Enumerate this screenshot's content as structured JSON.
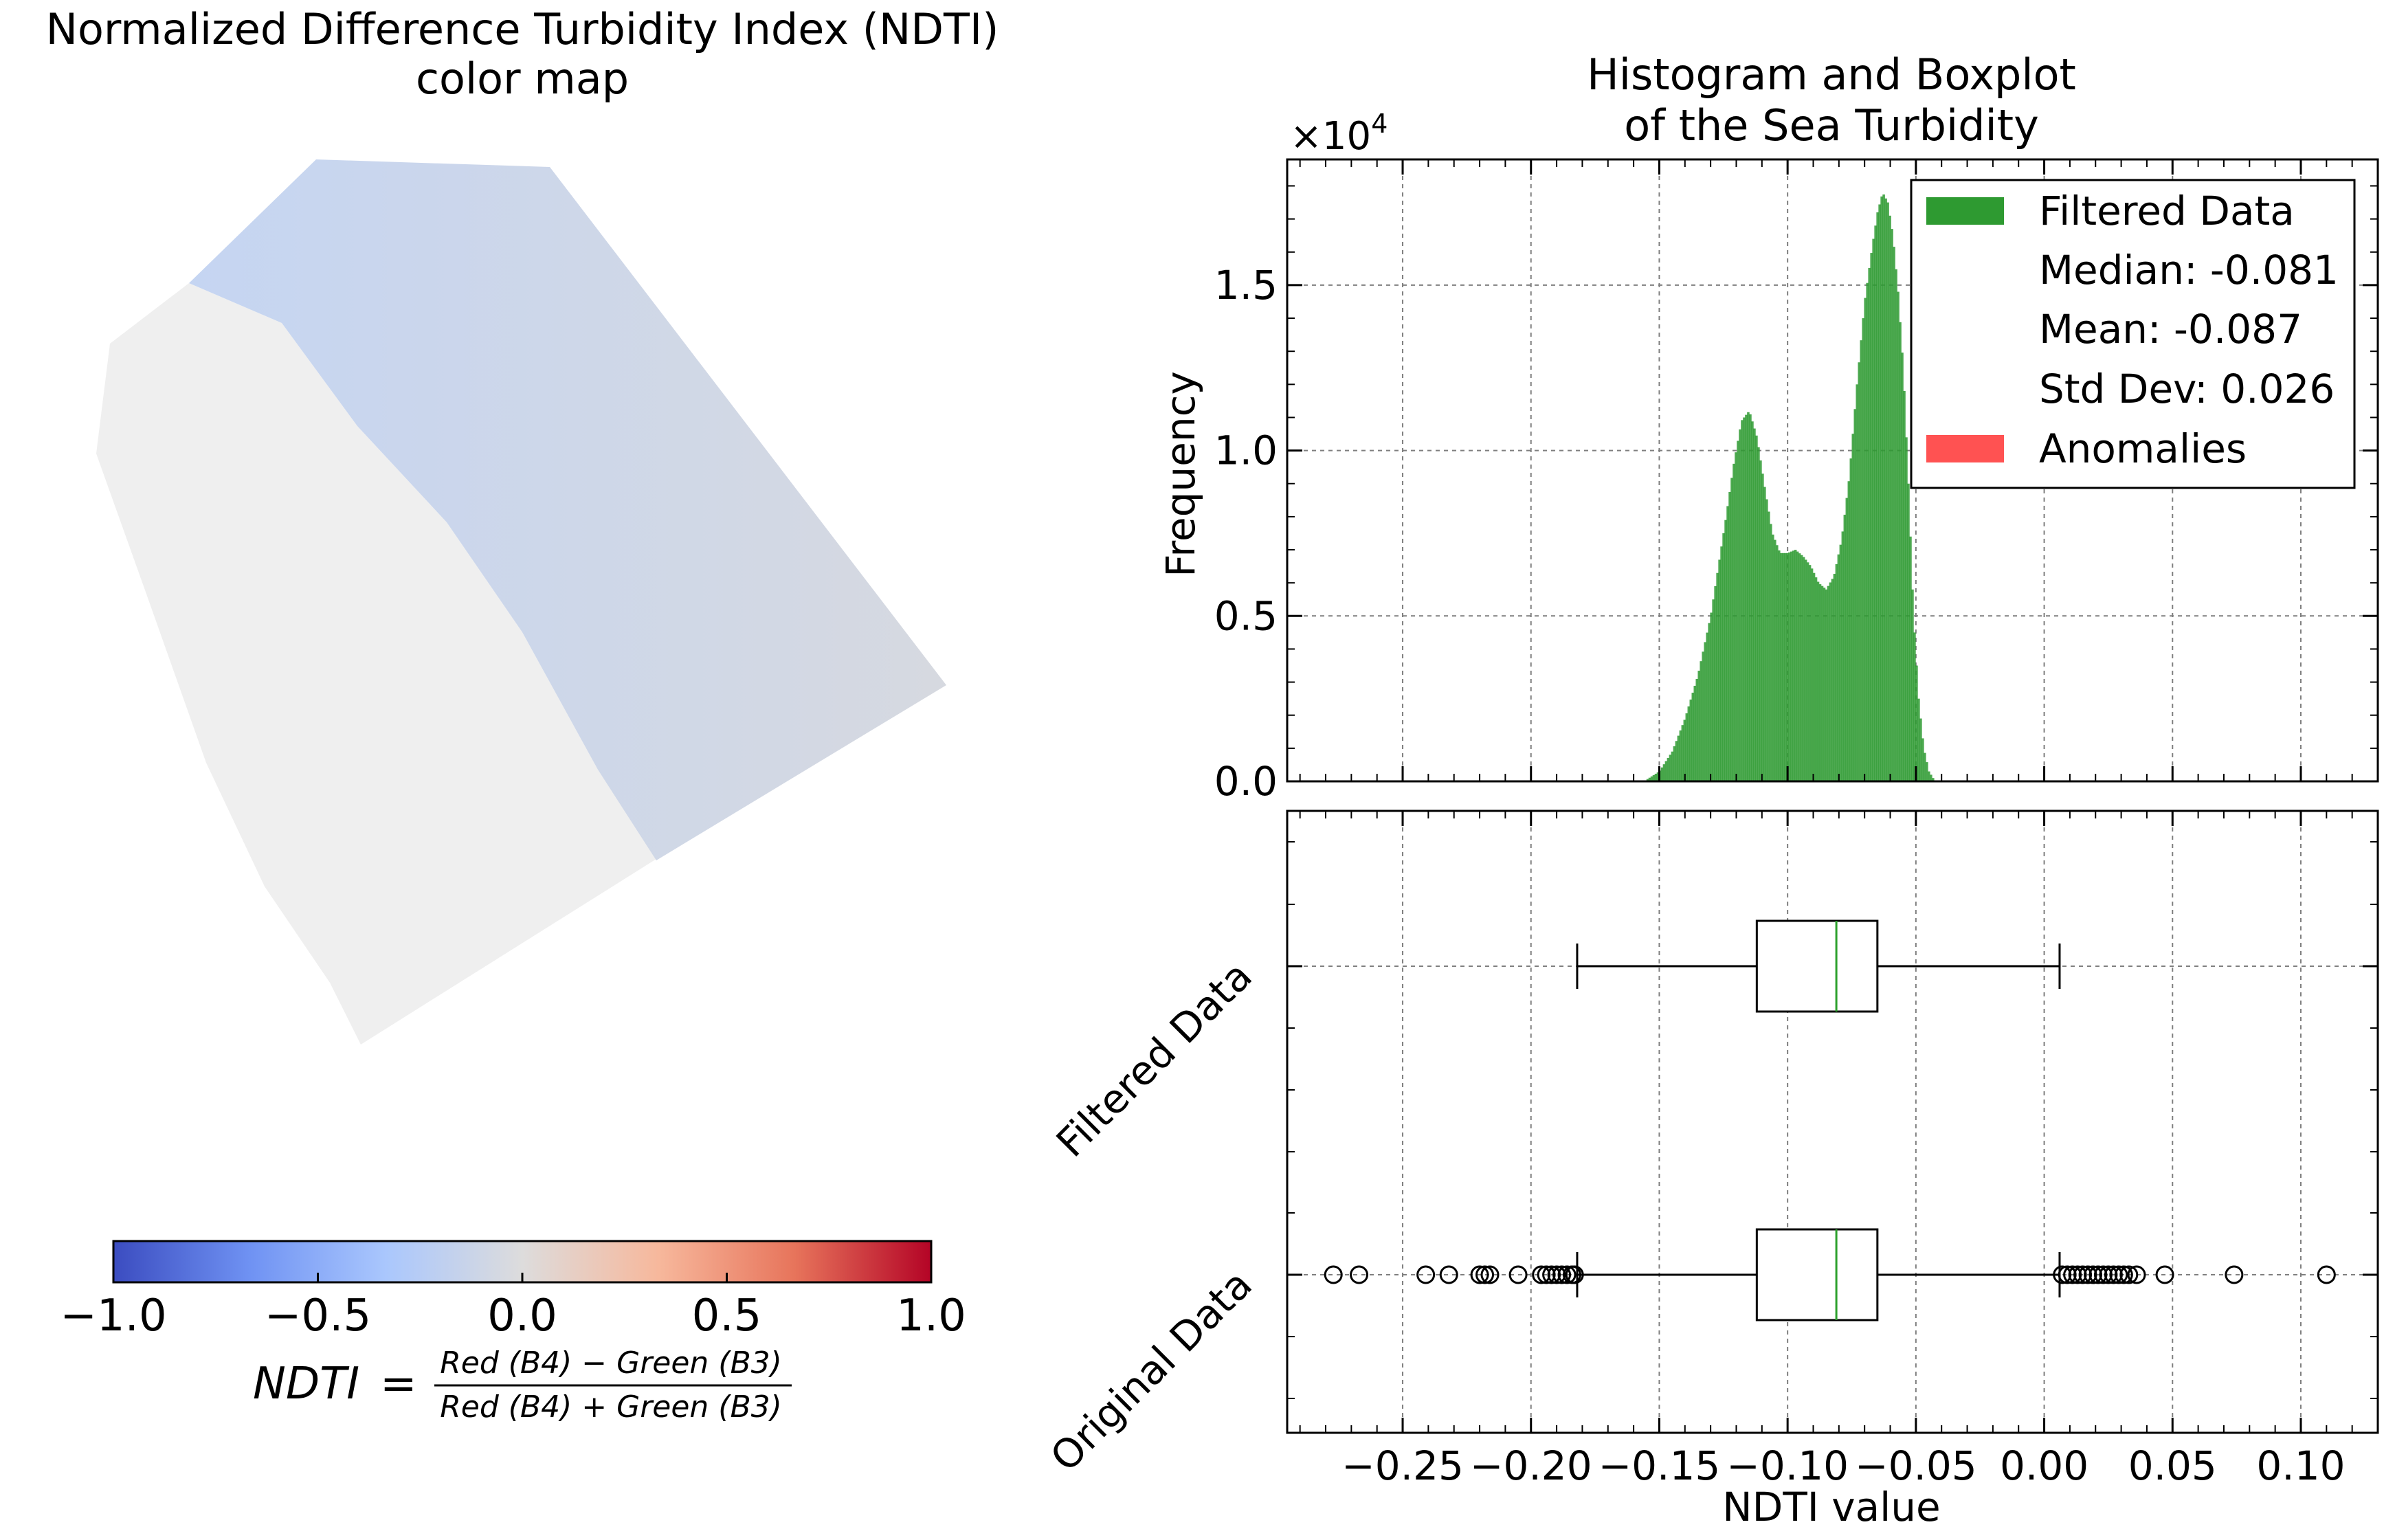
{
  "left_panel": {
    "title_line1": "Normalized Difference Turbidity Index (NDTI)",
    "title_line2": "color map",
    "colorbar": {
      "colormap": "coolwarm",
      "stops": [
        "#3b4cc0",
        "#6f92f3",
        "#aac7fd",
        "#dddcdc",
        "#f7b89c",
        "#e7745b",
        "#b40426"
      ],
      "range": [
        -1.0,
        1.0
      ],
      "tick_labels": [
        "−1.0",
        "−0.5",
        "0.0",
        "0.5",
        "1.0"
      ]
    },
    "formula": {
      "lhs": "NDTI",
      "equals": "=",
      "numerator": "Red (B4) − Green (B3)",
      "denominator": "Red (B4) + Green (B3)"
    },
    "map_colors": {
      "land": "#efefef",
      "sea_near": "#c5d5f2",
      "sea_far": "#d6d9e0"
    }
  },
  "chart_data": [
    {
      "type": "histogram",
      "title_line1": "Histogram and Boxplot",
      "title_line2": "of the Sea Turbidity",
      "ylabel": "Frequency",
      "y_multiplier_label": "×10",
      "y_multiplier_exp": "4",
      "xlim": [
        -0.295,
        0.13
      ],
      "ylim": [
        0,
        18800
      ],
      "y_ticks": [
        0,
        5000,
        10000,
        15000
      ],
      "y_tick_labels": [
        "0.0",
        "0.5",
        "1.0",
        "1.5"
      ],
      "grid": true,
      "bar_color": "#2e9a31",
      "series": [
        {
          "name": "Filtered Data",
          "x": [
            -0.155,
            -0.15,
            -0.145,
            -0.14,
            -0.135,
            -0.13,
            -0.127,
            -0.124,
            -0.121,
            -0.118,
            -0.115,
            -0.112,
            -0.109,
            -0.106,
            -0.103,
            -0.1,
            -0.097,
            -0.094,
            -0.091,
            -0.088,
            -0.085,
            -0.082,
            -0.079,
            -0.076,
            -0.073,
            -0.07,
            -0.067,
            -0.065,
            -0.063,
            -0.061,
            -0.059,
            -0.057,
            -0.055,
            -0.053,
            -0.051,
            -0.049,
            -0.047,
            -0.045,
            -0.043
          ],
          "counts": [
            50,
            300,
            900,
            1900,
            3200,
            5000,
            6500,
            8000,
            9600,
            10900,
            11200,
            10400,
            8900,
            7500,
            6900,
            6900,
            7000,
            6800,
            6500,
            6000,
            5800,
            6200,
            7300,
            9200,
            12000,
            14500,
            16200,
            17200,
            17800,
            17500,
            16500,
            14800,
            12500,
            9000,
            5000,
            2500,
            1000,
            300,
            50
          ]
        }
      ],
      "legend": {
        "position": "upper-right",
        "entries": [
          {
            "label": "Filtered Data",
            "color": "#2e9a31"
          },
          {
            "label": "Median: -0.081"
          },
          {
            "label": "Mean: -0.087"
          },
          {
            "label": "Std Dev: 0.026"
          },
          {
            "label": "Anomalies",
            "color": "#ff5252"
          }
        ]
      }
    },
    {
      "type": "boxplot",
      "xlabel": "NDTI value",
      "xlim": [
        -0.295,
        0.13
      ],
      "x_ticks": [
        -0.25,
        -0.2,
        -0.15,
        -0.1,
        -0.05,
        0.0,
        0.05,
        0.1
      ],
      "x_tick_labels": [
        "−0.25",
        "−0.20",
        "−0.15",
        "−0.10",
        "−0.05",
        "0.00",
        "0.05",
        "0.10"
      ],
      "grid": true,
      "median_color": "#2ca02c",
      "categories": [
        "Original Data",
        "Filtered Data"
      ],
      "boxes": [
        {
          "name": "Original Data",
          "whisker_low": -0.182,
          "q1": -0.112,
          "median": -0.081,
          "q3": -0.065,
          "whisker_high": 0.006,
          "outliers": [
            -0.277,
            -0.267,
            -0.241,
            -0.232,
            -0.22,
            -0.218,
            -0.216,
            -0.205,
            -0.196,
            -0.194,
            -0.192,
            -0.19,
            -0.188,
            -0.186,
            -0.184,
            -0.183,
            0.007,
            0.009,
            0.011,
            0.013,
            0.015,
            0.017,
            0.019,
            0.021,
            0.023,
            0.025,
            0.027,
            0.029,
            0.031,
            0.033,
            0.036,
            0.047,
            0.074,
            0.11
          ]
        },
        {
          "name": "Filtered Data",
          "whisker_low": -0.182,
          "q1": -0.112,
          "median": -0.081,
          "q3": -0.065,
          "whisker_high": 0.006,
          "outliers": []
        }
      ]
    }
  ]
}
